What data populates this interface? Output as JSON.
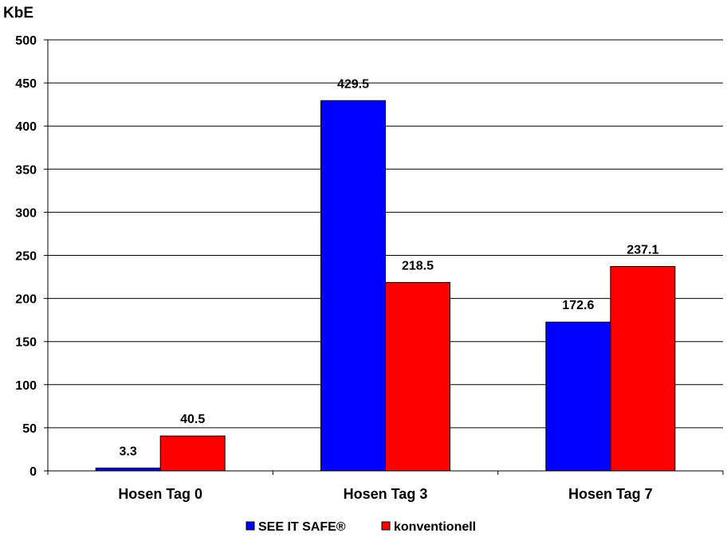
{
  "chart_data": {
    "type": "bar",
    "title": "",
    "ylabel": "KbE",
    "xlabel": "",
    "categories": [
      "Hosen Tag 0",
      "Hosen Tag 3",
      "Hosen Tag 7"
    ],
    "series": [
      {
        "name": "SEE IT SAFE®",
        "values": [
          3.3,
          429.5,
          172.6
        ],
        "color": "#0000ff"
      },
      {
        "name": "konventionell",
        "values": [
          40.5,
          218.5,
          237.1
        ],
        "color": "#ff0000"
      }
    ],
    "value_labels": [
      [
        "3.3",
        "429.5",
        "172.6"
      ],
      [
        "40.5",
        "218.5",
        "237.1"
      ]
    ],
    "ylim": [
      0,
      500
    ],
    "yticks": [
      "0",
      "50",
      "100",
      "150",
      "200",
      "250",
      "300",
      "350",
      "400",
      "450",
      "500"
    ],
    "grid": true,
    "legend_position": "bottom"
  }
}
